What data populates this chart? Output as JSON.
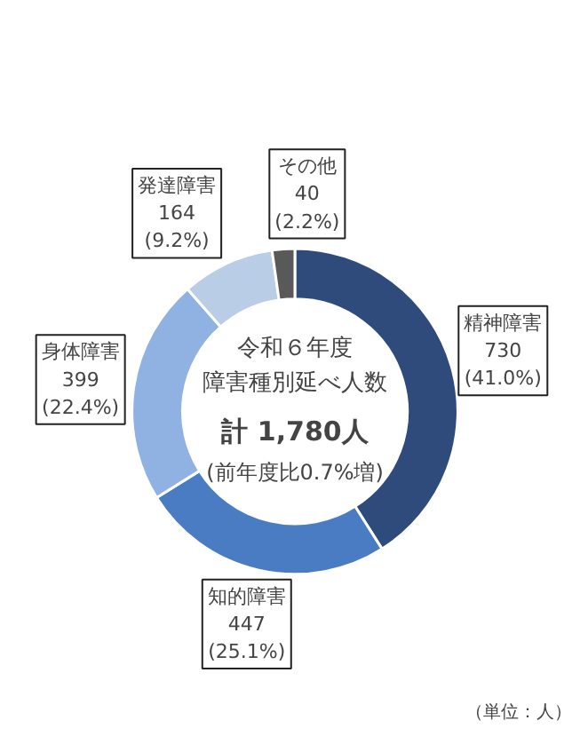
{
  "chart_data": {
    "type": "donut",
    "title": "令和６年度",
    "subtitle": "障害種別延べ人数",
    "categories": [
      "精神障害",
      "知的障害",
      "身体障害",
      "発達障害",
      "その他"
    ],
    "values": [
      730,
      447,
      399,
      164,
      40
    ],
    "value_labels": [
      "730\n(41.0%)",
      "447\n(25.1%)",
      "399\n(22.4%)",
      "164\n(9.2%)",
      "40\n(2.2%)"
    ],
    "colors": [
      "#2f4b7c",
      "#4a7cc4",
      "#8fb2e3",
      "#b9cde6",
      "#595959"
    ],
    "annotations": [
      "計 1,780人",
      "(前年度比0.7%増)",
      "（単位：人）"
    ]
  }
}
